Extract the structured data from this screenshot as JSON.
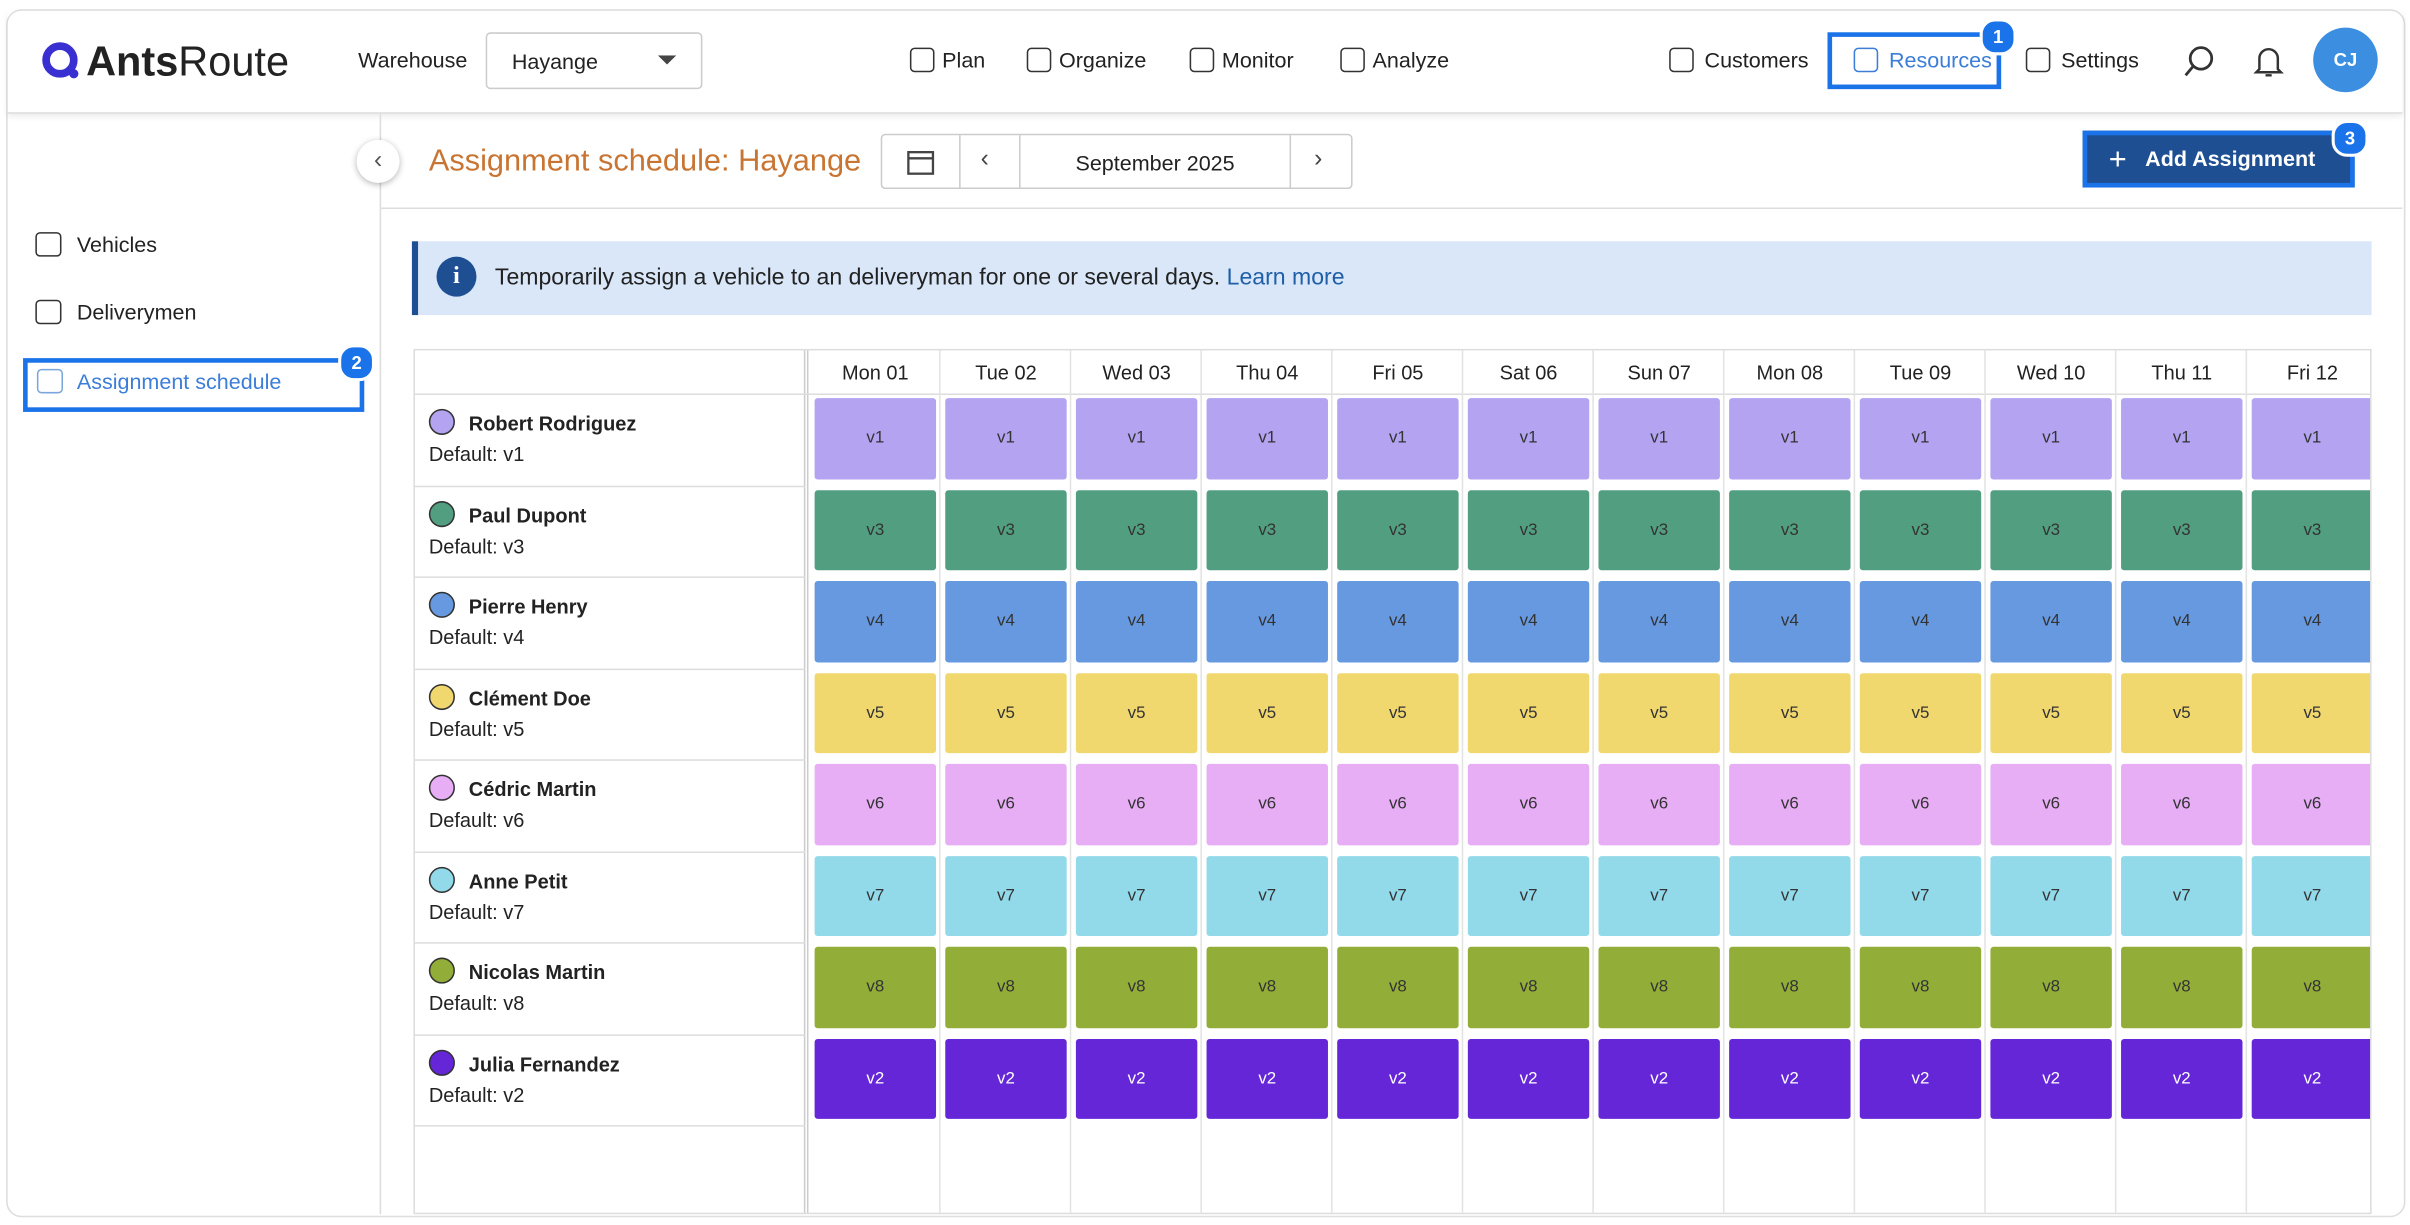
{
  "header": {
    "logo_bold": "Ants",
    "logo_light": "Route",
    "warehouse_label": "Warehouse",
    "warehouse_value": "Hayange",
    "nav": [
      "Plan",
      "Organize",
      "Monitor",
      "Analyze"
    ],
    "right_nav": [
      "Customers",
      "Resources",
      "Settings"
    ],
    "avatar": "CJ"
  },
  "sidebar": {
    "items": [
      "Vehicles",
      "Deliverymen",
      "Assignment schedule"
    ]
  },
  "toolbar": {
    "title": "Assignment schedule: Hayange",
    "month": "September 2025",
    "add_button": "Add Assignment"
  },
  "info": {
    "text": "Temporarily assign a vehicle to an deliveryman for one or several days.",
    "link": "Learn more"
  },
  "badges": [
    "1",
    "2",
    "3"
  ],
  "table": {
    "days": [
      "Mon 01",
      "Tue 02",
      "Wed 03",
      "Thu 04",
      "Fri 05",
      "Sat 06",
      "Sun 07",
      "Mon 08",
      "Tue 09",
      "Wed 10",
      "Thu 11",
      "Fri 12"
    ],
    "rows": [
      {
        "name": "Robert Rodriguez",
        "default": "Default: v1",
        "vehicle": "v1",
        "color": "#b3a3f0"
      },
      {
        "name": "Paul Dupont",
        "default": "Default: v3",
        "vehicle": "v3",
        "color": "#529e80"
      },
      {
        "name": "Pierre Henry",
        "default": "Default: v4",
        "vehicle": "v4",
        "color": "#6699e0"
      },
      {
        "name": "Clément Doe",
        "default": "Default: v5",
        "vehicle": "v5",
        "color": "#f0d76e"
      },
      {
        "name": "Cédric Martin",
        "default": "Default: v6",
        "vehicle": "v6",
        "color": "#e7aef5"
      },
      {
        "name": "Anne Petit",
        "default": "Default: v7",
        "vehicle": "v7",
        "color": "#92d9ea"
      },
      {
        "name": "Nicolas Martin",
        "default": "Default: v8",
        "vehicle": "v8",
        "color": "#93ae38"
      },
      {
        "name": "Julia Fernandez",
        "default": "Default: v2",
        "vehicle": "v2",
        "color": "#6526d8"
      }
    ]
  }
}
